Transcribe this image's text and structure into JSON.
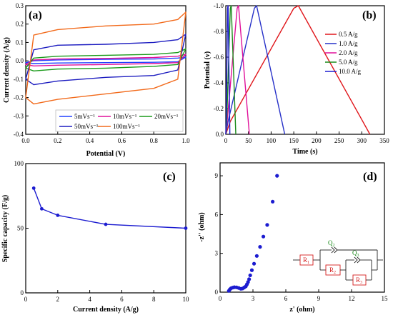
{
  "chart_data": [
    {
      "panel": "(a)",
      "type": "line",
      "xlabel": "Potential (V)",
      "ylabel": "Current density (A/g)",
      "xlim": [
        0.0,
        1.0
      ],
      "ylim": [
        -0.4,
        0.3
      ],
      "xticks": [
        "0.0",
        "0.2",
        "0.4",
        "0.6",
        "0.8",
        "1.0"
      ],
      "yticks": [
        "-0.4",
        "-0.3",
        "-0.2",
        "-0.1",
        "0.0",
        "0.1",
        "0.2",
        "0.3"
      ],
      "legend_position": "bottom-right",
      "series": [
        {
          "name": "5mVs⁻¹",
          "color": "#2040ff",
          "x": [
            0.0,
            0.05,
            0.2,
            0.5,
            0.8,
            0.95,
            1.0,
            1.0,
            0.95,
            0.8,
            0.5,
            0.2,
            0.05,
            0.0
          ],
          "y": [
            -0.01,
            0.0,
            0.005,
            0.008,
            0.01,
            0.015,
            0.02,
            0.02,
            -0.005,
            -0.008,
            -0.01,
            -0.012,
            -0.015,
            -0.01
          ]
        },
        {
          "name": "10mVs⁻¹",
          "color": "#e0109a",
          "x": [
            0.0,
            0.05,
            0.2,
            0.5,
            0.8,
            0.95,
            1.0,
            1.0,
            0.95,
            0.8,
            0.5,
            0.2,
            0.05,
            0.0
          ],
          "y": [
            -0.02,
            0.005,
            0.01,
            0.013,
            0.018,
            0.025,
            0.035,
            0.035,
            -0.01,
            -0.015,
            -0.02,
            -0.024,
            -0.028,
            -0.02
          ]
        },
        {
          "name": "20mVs⁻¹",
          "color": "#1a9a1a",
          "x": [
            0.0,
            0.05,
            0.2,
            0.5,
            0.8,
            0.95,
            1.0,
            1.0,
            0.95,
            0.8,
            0.5,
            0.2,
            0.05,
            0.0
          ],
          "y": [
            -0.04,
            0.015,
            0.025,
            0.03,
            0.035,
            0.045,
            0.065,
            0.065,
            -0.02,
            -0.03,
            -0.04,
            -0.045,
            -0.055,
            -0.04
          ]
        },
        {
          "name": "50mVs⁻¹",
          "color": "#1c1cc0",
          "x": [
            0.0,
            0.05,
            0.2,
            0.5,
            0.8,
            0.95,
            1.0,
            1.0,
            0.95,
            0.8,
            0.5,
            0.2,
            0.05,
            0.0
          ],
          "y": [
            -0.1,
            0.06,
            0.085,
            0.09,
            0.1,
            0.115,
            0.145,
            0.145,
            -0.05,
            -0.08,
            -0.09,
            -0.11,
            -0.13,
            -0.1
          ]
        },
        {
          "name": "100mVs⁻¹",
          "color": "#f26a1b",
          "x": [
            0.0,
            0.05,
            0.2,
            0.5,
            0.8,
            0.95,
            1.0,
            1.0,
            0.95,
            0.8,
            0.5,
            0.2,
            0.05,
            0.0
          ],
          "y": [
            -0.2,
            0.14,
            0.17,
            0.19,
            0.2,
            0.225,
            0.265,
            0.265,
            -0.1,
            -0.15,
            -0.18,
            -0.21,
            -0.235,
            -0.2
          ]
        }
      ]
    },
    {
      "panel": "(b)",
      "type": "line",
      "xlabel": "Time (s)",
      "ylabel": "Potential (v)",
      "xlim": [
        0,
        350
      ],
      "ylim": [
        0.0,
        -1.0
      ],
      "xticks": [
        "0",
        "50",
        "100",
        "150",
        "200",
        "250",
        "300",
        "350"
      ],
      "yticks": [
        "0.0",
        "-0.2",
        "-0.4",
        "-0.6",
        "-0.8",
        "-1.0"
      ],
      "legend_position": "right",
      "series": [
        {
          "name": "0.5 A/g",
          "color": "#e0161b",
          "x": [
            0,
            10,
            150,
            160,
            318
          ],
          "y": [
            0.0,
            -0.1,
            -0.98,
            -1.0,
            0.0
          ]
        },
        {
          "name": "1.0 A/g",
          "color": "#2630c8",
          "x": [
            0,
            5,
            63,
            68,
            130
          ],
          "y": [
            0.0,
            -0.1,
            -0.98,
            -1.0,
            0.0
          ]
        },
        {
          "name": "2.0 A/g",
          "color": "#e0109a",
          "x": [
            0,
            3,
            25,
            28,
            52
          ],
          "y": [
            0.0,
            -0.1,
            -0.98,
            -1.0,
            0.0
          ]
        },
        {
          "name": "5.0 A/g",
          "color": "#1a8a1a",
          "x": [
            0,
            2,
            10,
            12,
            22
          ],
          "y": [
            0.0,
            -0.1,
            -0.98,
            -1.0,
            0.0
          ]
        },
        {
          "name": "10.0 A/g",
          "color": "#1c1cd0",
          "x": [
            0,
            1,
            4,
            5,
            9
          ],
          "y": [
            0.0,
            -0.1,
            -0.98,
            -1.0,
            0.0
          ]
        }
      ]
    },
    {
      "panel": "(c)",
      "type": "line",
      "xlabel": "Current density (A/g)",
      "ylabel": "Specific capacity (F/g)",
      "xlim": [
        0,
        10
      ],
      "ylim": [
        0,
        100
      ],
      "xticks": [
        "0",
        "2",
        "4",
        "6",
        "8",
        "10"
      ],
      "yticks": [
        "0",
        "50",
        "100"
      ],
      "series": [
        {
          "color": "#1c1cd0",
          "x": [
            0.5,
            1.0,
            2.0,
            5.0,
            10.0
          ],
          "y": [
            81,
            65,
            60,
            53,
            50
          ]
        }
      ]
    },
    {
      "panel": "(d)",
      "type": "scatter",
      "xlabel": "z' (ohm)",
      "ylabel": "-z'' (ohm)",
      "xlim": [
        0,
        15
      ],
      "ylim": [
        0,
        10
      ],
      "xticks": [
        "0",
        "3",
        "6",
        "9",
        "12",
        "15"
      ],
      "yticks": [
        "0",
        "3",
        "6",
        "9"
      ],
      "series": [
        {
          "color": "#1c1cd0",
          "x": [
            0.8,
            0.9,
            1.0,
            1.15,
            1.3,
            1.5,
            1.7,
            1.9,
            2.05,
            2.2,
            2.35,
            2.45,
            2.55,
            2.65,
            2.75,
            2.9,
            3.1,
            3.35,
            3.65,
            3.95,
            4.3,
            4.8,
            5.2
          ],
          "y": [
            0.1,
            0.22,
            0.3,
            0.35,
            0.38,
            0.37,
            0.32,
            0.26,
            0.28,
            0.36,
            0.45,
            0.6,
            0.78,
            1.0,
            1.3,
            1.7,
            2.2,
            2.8,
            3.5,
            4.3,
            5.2,
            7.0,
            9.0
          ]
        }
      ],
      "inset_circuit": {
        "q2": "Q",
        "q2_sub": "2",
        "q3": "Q",
        "q3_sub": "3",
        "r1": "R",
        "r1_sub": "1",
        "r2": "R",
        "r2_sub": "2",
        "r3": "R",
        "r3_sub": "3"
      }
    }
  ]
}
